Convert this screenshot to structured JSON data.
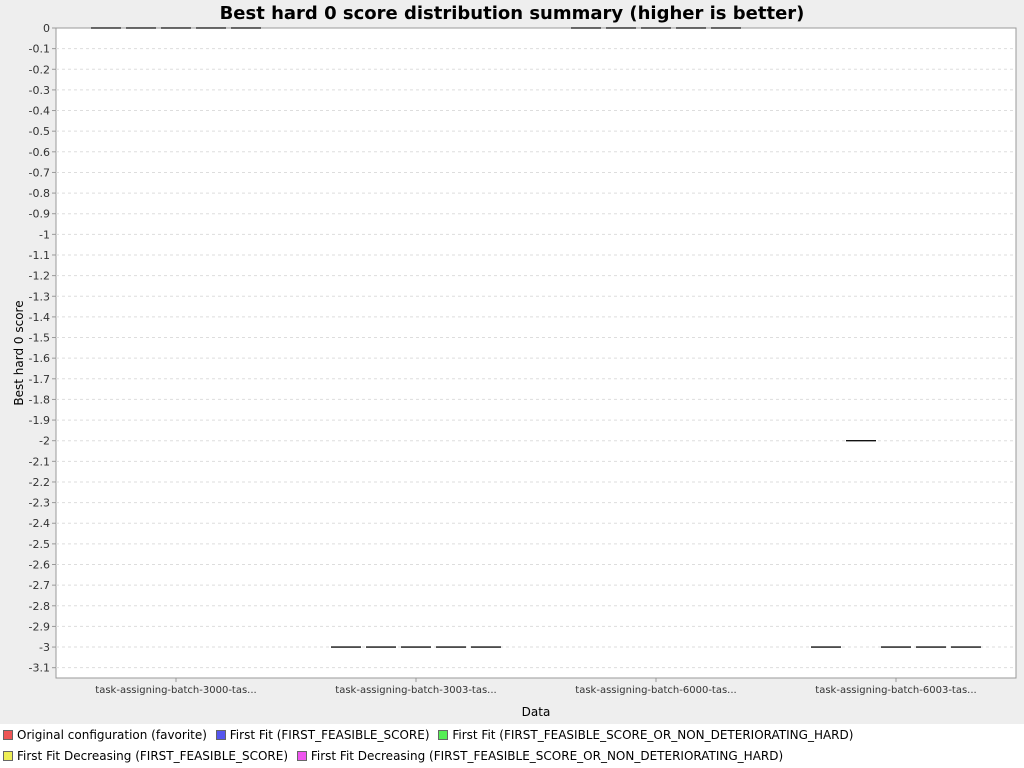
{
  "chart_data": {
    "type": "box",
    "title": "Best hard 0 score distribution summary (higher is better)",
    "xlabel": "Data",
    "ylabel": "Best hard 0 score",
    "ylim": [
      -3.15,
      0
    ],
    "y_ticks": [
      "0",
      "-0.1",
      "-0.2",
      "-0.3",
      "-0.4",
      "-0.5",
      "-0.6",
      "-0.7",
      "-0.8",
      "-0.9",
      "-1",
      "-1.1",
      "-1.2",
      "-1.3",
      "-1.4",
      "-1.5",
      "-1.6",
      "-1.7",
      "-1.8",
      "-1.9",
      "-2",
      "-2.1",
      "-2.2",
      "-2.3",
      "-2.4",
      "-2.5",
      "-2.6",
      "-2.7",
      "-2.8",
      "-2.9",
      "-3",
      "-3.1"
    ],
    "y_tick_values": [
      0,
      -0.1,
      -0.2,
      -0.3,
      -0.4,
      -0.5,
      -0.6,
      -0.7,
      -0.8,
      -0.9,
      -1,
      -1.1,
      -1.2,
      -1.3,
      -1.4,
      -1.5,
      -1.6,
      -1.7,
      -1.8,
      -1.9,
      -2,
      -2.1,
      -2.2,
      -2.3,
      -2.4,
      -2.5,
      -2.6,
      -2.7,
      -2.8,
      -2.9,
      -3,
      -3.1
    ],
    "grid": true,
    "legend_position": "bottom",
    "categories": [
      "task-assigning-batch-3000-tas...",
      "task-assigning-batch-3003-tas...",
      "task-assigning-batch-6000-tas...",
      "task-assigning-batch-6003-tas..."
    ],
    "series": [
      {
        "name": "Original configuration (favorite)",
        "color": "#ee5555",
        "values": [
          0,
          -3,
          0,
          -3
        ]
      },
      {
        "name": "First Fit (FIRST_FEASIBLE_SCORE)",
        "color": "#5555ee",
        "values": [
          0,
          -3,
          0,
          -2
        ]
      },
      {
        "name": "First Fit (FIRST_FEASIBLE_SCORE_OR_NON_DETERIORATING_HARD)",
        "color": "#55ee55",
        "values": [
          0,
          -3,
          0,
          -3
        ]
      },
      {
        "name": "First Fit Decreasing (FIRST_FEASIBLE_SCORE)",
        "color": "#eeee55",
        "values": [
          0,
          -3,
          0,
          -3
        ]
      },
      {
        "name": "First Fit Decreasing (FIRST_FEASIBLE_SCORE_OR_NON_DETERIORATING_HARD)",
        "color": "#ee55ee",
        "values": [
          0,
          -3,
          0,
          -3
        ]
      }
    ]
  }
}
